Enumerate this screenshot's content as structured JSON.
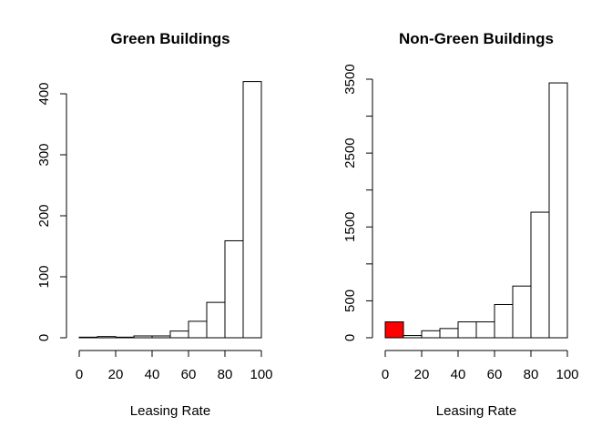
{
  "chart_data": [
    {
      "type": "bar",
      "title": "Green Buildings",
      "xlabel": "Leasing Rate",
      "ylabel": "",
      "bin_edges": [
        0,
        10,
        20,
        30,
        40,
        50,
        60,
        70,
        80,
        90,
        100
      ],
      "values": [
        1,
        2,
        1,
        3,
        3,
        11,
        27,
        58,
        159,
        420
      ],
      "xlim": [
        0,
        100
      ],
      "ylim": [
        0,
        400
      ],
      "xticks": [
        0,
        20,
        40,
        60,
        80,
        100
      ],
      "yticks": [
        0,
        100,
        200,
        300,
        400
      ],
      "bar_fill": "#ffffff",
      "highlight_index": -1,
      "highlight_color": "#ff0000",
      "grid": false
    },
    {
      "type": "bar",
      "title": "Non-Green Buildings",
      "xlabel": "Leasing Rate",
      "ylabel": "",
      "bin_edges": [
        0,
        10,
        20,
        30,
        40,
        50,
        60,
        70,
        80,
        90,
        100
      ],
      "values": [
        215,
        30,
        95,
        125,
        215,
        215,
        450,
        700,
        1700,
        3450
      ],
      "xlim": [
        0,
        100
      ],
      "ylim": [
        0,
        3500
      ],
      "xticks": [
        0,
        20,
        40,
        60,
        80,
        100
      ],
      "yticks": [
        0,
        500,
        1000,
        1500,
        2000,
        2500,
        3000,
        3500
      ],
      "ytick_labels_shown": [
        0,
        500,
        1500,
        2500,
        3500
      ],
      "bar_fill": "#ffffff",
      "highlight_index": 0,
      "highlight_color": "#ff0000",
      "grid": false
    }
  ]
}
